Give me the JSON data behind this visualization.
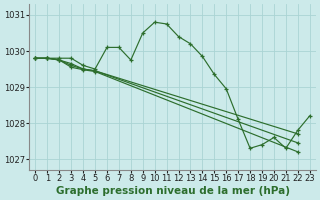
{
  "xlabel": "Graphe pression niveau de la mer (hPa)",
  "background_color": "#cceaea",
  "grid_color": "#aad4d4",
  "line_color": "#2d6e2d",
  "figsize": [
    3.2,
    2.0
  ],
  "dpi": 100,
  "ylim": [
    1026.7,
    1031.3
  ],
  "xlim": [
    -0.5,
    23.5
  ],
  "yticks": [
    1027,
    1028,
    1029,
    1030,
    1031
  ],
  "xticks": [
    0,
    1,
    2,
    3,
    4,
    5,
    6,
    7,
    8,
    9,
    10,
    11,
    12,
    13,
    14,
    15,
    16,
    17,
    18,
    19,
    20,
    21,
    22,
    23
  ],
  "tick_fontsize": 6.0,
  "label_fontsize": 7.5,
  "lines": [
    {
      "x": [
        0,
        1,
        2,
        3,
        4,
        5,
        6,
        7,
        8,
        9,
        10,
        11,
        12,
        13,
        14,
        15,
        16,
        17,
        18,
        19,
        20,
        21,
        22,
        23
      ],
      "y": [
        1029.8,
        1029.8,
        1029.8,
        1029.8,
        1029.6,
        1029.5,
        1030.1,
        1030.1,
        1029.75,
        1030.5,
        1030.8,
        1030.75,
        1030.4,
        1030.2,
        1029.85,
        1029.35,
        1028.95,
        1028.1,
        1027.3,
        1027.4,
        1027.6,
        1027.3,
        1027.8,
        1028.2
      ]
    },
    {
      "x": [
        0,
        1,
        2,
        3,
        4,
        5,
        22
      ],
      "y": [
        1029.8,
        1029.8,
        1029.75,
        1029.65,
        1029.5,
        1029.45,
        1027.7
      ]
    },
    {
      "x": [
        0,
        1,
        2,
        3,
        4,
        5,
        22
      ],
      "y": [
        1029.8,
        1029.8,
        1029.75,
        1029.6,
        1029.5,
        1029.45,
        1027.45
      ]
    },
    {
      "x": [
        0,
        1,
        2,
        3,
        4,
        5,
        22
      ],
      "y": [
        1029.8,
        1029.8,
        1029.75,
        1029.55,
        1029.48,
        1029.43,
        1027.2
      ]
    }
  ]
}
